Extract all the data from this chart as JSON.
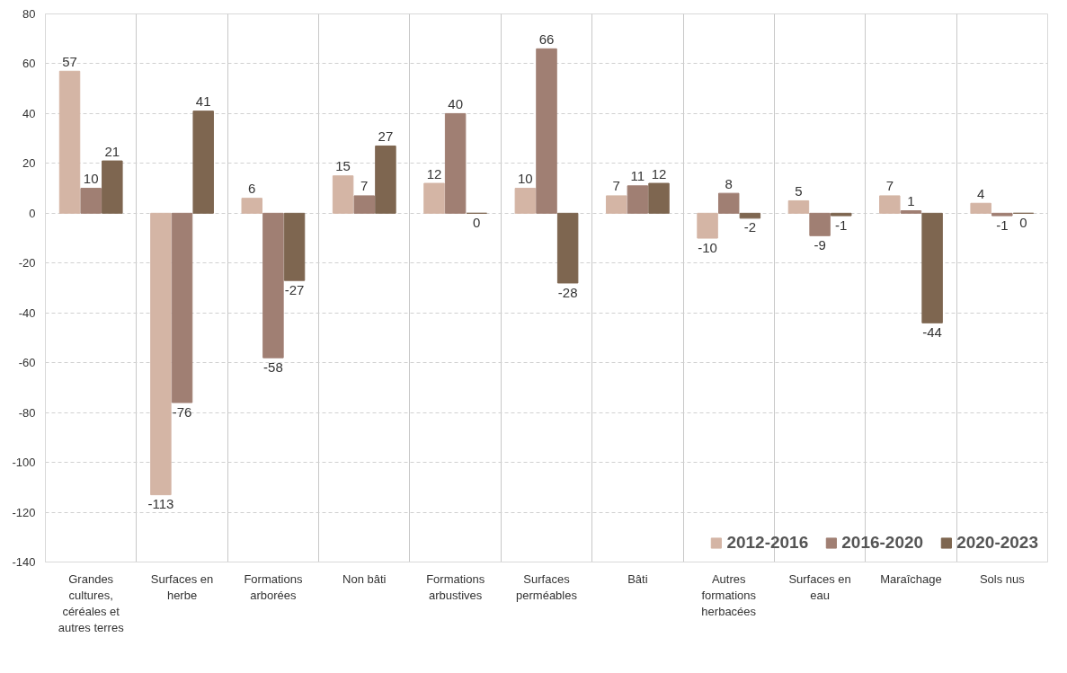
{
  "chart_data": {
    "type": "bar",
    "categories": [
      "Grandes cultures, céréales et autres terres",
      "Surfaces en herbe",
      "Formations arborées",
      "Non bâti",
      "Formations arbustives",
      "Surfaces perméables",
      "Bâti",
      "Autres formations herbacées",
      "Surfaces en eau",
      "Maraîchage",
      "Sols nus"
    ],
    "series": [
      {
        "name": "2012-2016",
        "color": "#d4b5a5",
        "values": [
          57,
          -113,
          6,
          15,
          12,
          10,
          7,
          -10,
          5,
          7,
          4
        ]
      },
      {
        "name": "2016-2020",
        "color": "#a07f73",
        "values": [
          10,
          -76,
          -58,
          7,
          40,
          66,
          11,
          8,
          -9,
          1,
          -1
        ]
      },
      {
        "name": "2020-2023",
        "color": "#7e6650",
        "values": [
          21,
          41,
          -27,
          27,
          0,
          -28,
          12,
          -2,
          -1,
          -44,
          0
        ]
      }
    ],
    "ylim": [
      -140,
      80
    ],
    "yticks": [
      -140,
      -120,
      -100,
      -80,
      -60,
      -40,
      -20,
      0,
      20,
      40,
      60,
      80
    ],
    "grid": true,
    "legend": "bottom right",
    "data_labels": true
  }
}
